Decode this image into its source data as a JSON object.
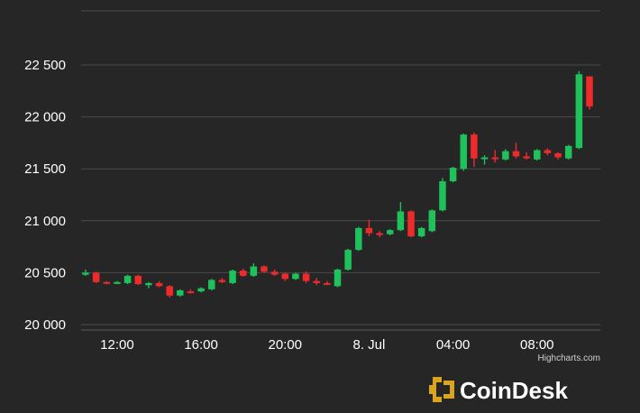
{
  "chart_data": {
    "type": "candlestick",
    "title": "",
    "xlabel": "",
    "ylabel": "",
    "ylim": [
      19800,
      23000
    ],
    "y_ticks": [
      20000,
      20500,
      21000,
      21500,
      22000,
      22500
    ],
    "y_tick_labels": [
      "20 000",
      "20 500",
      "21 000",
      "21 500",
      "22 000",
      "22 500"
    ],
    "x_ticks": [
      "12:00",
      "16:00",
      "20:00",
      "8. Jul",
      "04:00",
      "08:00"
    ],
    "x_tick_positions_hours": [
      1.5,
      5.5,
      9.5,
      13.5,
      17.5,
      21.5
    ],
    "grid": true,
    "colors": {
      "up": "#1ec15a",
      "down": "#ee2b2b",
      "grid": "#4a4a4a",
      "background": "#262626"
    },
    "candles": [
      {
        "t": 0.0,
        "open": 20480,
        "high": 20530,
        "low": 20470,
        "close": 20500
      },
      {
        "t": 0.5,
        "open": 20500,
        "high": 20510,
        "low": 20400,
        "close": 20410
      },
      {
        "t": 1.0,
        "open": 20410,
        "high": 20420,
        "low": 20390,
        "close": 20400
      },
      {
        "t": 1.5,
        "open": 20400,
        "high": 20420,
        "low": 20390,
        "close": 20410
      },
      {
        "t": 2.0,
        "open": 20400,
        "high": 20480,
        "low": 20390,
        "close": 20470
      },
      {
        "t": 2.5,
        "open": 20470,
        "high": 20480,
        "low": 20380,
        "close": 20390
      },
      {
        "t": 3.0,
        "open": 20380,
        "high": 20410,
        "low": 20350,
        "close": 20400
      },
      {
        "t": 3.5,
        "open": 20400,
        "high": 20420,
        "low": 20360,
        "close": 20370
      },
      {
        "t": 4.0,
        "open": 20370,
        "high": 20380,
        "low": 20260,
        "close": 20280
      },
      {
        "t": 4.5,
        "open": 20280,
        "high": 20340,
        "low": 20270,
        "close": 20330
      },
      {
        "t": 5.0,
        "open": 20320,
        "high": 20340,
        "low": 20300,
        "close": 20310
      },
      {
        "t": 5.5,
        "open": 20320,
        "high": 20360,
        "low": 20310,
        "close": 20350
      },
      {
        "t": 6.0,
        "open": 20340,
        "high": 20440,
        "low": 20330,
        "close": 20430
      },
      {
        "t": 6.5,
        "open": 20430,
        "high": 20450,
        "low": 20400,
        "close": 20410
      },
      {
        "t": 7.0,
        "open": 20400,
        "high": 20530,
        "low": 20390,
        "close": 20520
      },
      {
        "t": 7.5,
        "open": 20520,
        "high": 20540,
        "low": 20460,
        "close": 20470
      },
      {
        "t": 8.0,
        "open": 20470,
        "high": 20590,
        "low": 20460,
        "close": 20560
      },
      {
        "t": 8.5,
        "open": 20560,
        "high": 20570,
        "low": 20500,
        "close": 20510
      },
      {
        "t": 9.0,
        "open": 20510,
        "high": 20530,
        "low": 20470,
        "close": 20480
      },
      {
        "t": 9.5,
        "open": 20490,
        "high": 20500,
        "low": 20420,
        "close": 20440
      },
      {
        "t": 10.0,
        "open": 20440,
        "high": 20500,
        "low": 20430,
        "close": 20490
      },
      {
        "t": 10.5,
        "open": 20490,
        "high": 20510,
        "low": 20400,
        "close": 20420
      },
      {
        "t": 11.0,
        "open": 20420,
        "high": 20450,
        "low": 20380,
        "close": 20400
      },
      {
        "t": 11.5,
        "open": 20400,
        "high": 20420,
        "low": 20380,
        "close": 20390
      },
      {
        "t": 12.0,
        "open": 20370,
        "high": 20540,
        "low": 20360,
        "close": 20530
      },
      {
        "t": 12.5,
        "open": 20530,
        "high": 20730,
        "low": 20520,
        "close": 20720
      },
      {
        "t": 13.0,
        "open": 20720,
        "high": 20940,
        "low": 20710,
        "close": 20930
      },
      {
        "t": 13.5,
        "open": 20930,
        "high": 21010,
        "low": 20850,
        "close": 20880
      },
      {
        "t": 14.0,
        "open": 20880,
        "high": 20900,
        "low": 20840,
        "close": 20870
      },
      {
        "t": 14.5,
        "open": 20870,
        "high": 20920,
        "low": 20860,
        "close": 20910
      },
      {
        "t": 15.0,
        "open": 20910,
        "high": 21180,
        "low": 20900,
        "close": 21090
      },
      {
        "t": 15.5,
        "open": 21090,
        "high": 21100,
        "low": 20840,
        "close": 20850
      },
      {
        "t": 16.0,
        "open": 20850,
        "high": 20940,
        "low": 20840,
        "close": 20930
      },
      {
        "t": 16.5,
        "open": 20900,
        "high": 21110,
        "low": 20890,
        "close": 21100
      },
      {
        "t": 17.0,
        "open": 21100,
        "high": 21410,
        "low": 21090,
        "close": 21380
      },
      {
        "t": 17.5,
        "open": 21380,
        "high": 21520,
        "low": 21370,
        "close": 21510
      },
      {
        "t": 18.0,
        "open": 21500,
        "high": 21840,
        "low": 21480,
        "close": 21830
      },
      {
        "t": 18.5,
        "open": 21830,
        "high": 21850,
        "low": 21520,
        "close": 21600
      },
      {
        "t": 19.0,
        "open": 21600,
        "high": 21630,
        "low": 21540,
        "close": 21610
      },
      {
        "t": 19.5,
        "open": 21610,
        "high": 21680,
        "low": 21560,
        "close": 21600
      },
      {
        "t": 20.0,
        "open": 21590,
        "high": 21690,
        "low": 21580,
        "close": 21670
      },
      {
        "t": 20.5,
        "open": 21670,
        "high": 21750,
        "low": 21600,
        "close": 21620
      },
      {
        "t": 21.0,
        "open": 21620,
        "high": 21660,
        "low": 21590,
        "close": 21600
      },
      {
        "t": 21.5,
        "open": 21590,
        "high": 21690,
        "low": 21580,
        "close": 21680
      },
      {
        "t": 22.0,
        "open": 21680,
        "high": 21700,
        "low": 21630,
        "close": 21650
      },
      {
        "t": 22.5,
        "open": 21650,
        "high": 21660,
        "low": 21590,
        "close": 21610
      },
      {
        "t": 23.0,
        "open": 21600,
        "high": 21730,
        "low": 21590,
        "close": 21720
      },
      {
        "t": 23.5,
        "open": 21700,
        "high": 22440,
        "low": 21690,
        "close": 22410
      },
      {
        "t": 24.0,
        "open": 22390,
        "high": 22390,
        "low": 22070,
        "close": 22100
      }
    ]
  },
  "credit": "Highcharts.com",
  "brand": {
    "name": "CoinDesk",
    "logo_color": "#d9a520"
  }
}
